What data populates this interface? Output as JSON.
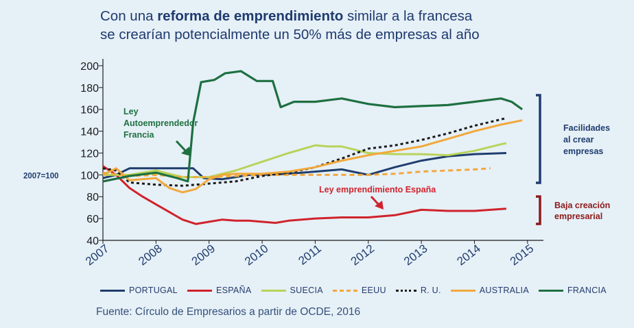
{
  "title": {
    "prefix": "Con una ",
    "bold": "reforma de emprendimiento",
    "suffix": " similar a la francesa",
    "line2": "se crearían potencialmente un 50% más de empresas al año"
  },
  "source": "Fuente: Círculo de Empresarios a partir de OCDE, 2016",
  "base_label": "2007=100",
  "annotations": {
    "francia_law": [
      "Ley",
      "Autoemprendedor",
      "Francia"
    ],
    "espana_law": "Ley emprendimiento España",
    "facilidades": [
      "Facilidades",
      "al crear",
      "empresas"
    ],
    "baja": [
      "Baja creación",
      "empresarial"
    ]
  },
  "colors": {
    "portugal": "#1f3d6e",
    "espana": "#d0222b",
    "suecia": "#b8d35a",
    "eeuu": "#f2a83b",
    "ru": "#1a1a1a",
    "australia": "#f2a83b",
    "francia": "#1e7040",
    "green_annot": "#1e7040",
    "red_annot": "#d0222b",
    "blue_bracket": "#1f3d6e",
    "dark_red_bracket": "#8b1a1a",
    "axis": "#1a1a1a"
  },
  "chart_data": {
    "type": "line",
    "title": "Con una reforma de emprendimiento similar a la francesa se crearían potencialmente un 50% más de empresas al año",
    "xlabel": "",
    "ylabel": "",
    "x_ticks": [
      "2007",
      "2008",
      "2009",
      "2010",
      "2011",
      "2012",
      "2013",
      "2014",
      "2015"
    ],
    "xlim": [
      2007,
      2015.3
    ],
    "y_ticks": [
      40,
      60,
      80,
      100,
      120,
      140,
      160,
      180,
      200
    ],
    "ylim": [
      40,
      205
    ],
    "legend_position": "bottom",
    "series": [
      {
        "name": "PORTUGAL",
        "color_key": "portugal",
        "dash": "solid",
        "points": [
          [
            2007,
            97
          ],
          [
            2007.25,
            100
          ],
          [
            2007.5,
            106
          ],
          [
            2007.75,
            106
          ],
          [
            2008,
            106
          ],
          [
            2008.25,
            106
          ],
          [
            2008.5,
            106
          ],
          [
            2008.7,
            106
          ],
          [
            2008.9,
            97
          ],
          [
            2009.25,
            96
          ],
          [
            2009.5,
            98
          ],
          [
            2009.75,
            100
          ],
          [
            2010,
            100
          ],
          [
            2010.5,
            101
          ],
          [
            2011,
            103
          ],
          [
            2011.5,
            105
          ],
          [
            2012,
            100
          ],
          [
            2012.5,
            107
          ],
          [
            2013,
            113
          ],
          [
            2013.5,
            117
          ],
          [
            2014,
            119
          ],
          [
            2014.6,
            120
          ]
        ]
      },
      {
        "name": "ESPAÑA",
        "color_key": "espana",
        "dash": "solid",
        "points": [
          [
            2007,
            108
          ],
          [
            2007.25,
            100
          ],
          [
            2007.5,
            88
          ],
          [
            2007.75,
            80
          ],
          [
            2008,
            73
          ],
          [
            2008.25,
            66
          ],
          [
            2008.5,
            59
          ],
          [
            2008.75,
            55
          ],
          [
            2009,
            57
          ],
          [
            2009.25,
            59
          ],
          [
            2009.5,
            58
          ],
          [
            2009.75,
            58
          ],
          [
            2010,
            57
          ],
          [
            2010.25,
            56
          ],
          [
            2010.5,
            58
          ],
          [
            2011,
            60
          ],
          [
            2011.5,
            61
          ],
          [
            2012,
            61
          ],
          [
            2012.5,
            63
          ],
          [
            2013,
            68
          ],
          [
            2013.5,
            67
          ],
          [
            2014,
            67
          ],
          [
            2014.6,
            69
          ]
        ]
      },
      {
        "name": "SUECIA",
        "color_key": "suecia",
        "dash": "solid",
        "points": [
          [
            2007,
            100
          ],
          [
            2007.5,
            100
          ],
          [
            2008,
            104
          ],
          [
            2008.5,
            98
          ],
          [
            2009,
            98
          ],
          [
            2009.5,
            104
          ],
          [
            2010,
            112
          ],
          [
            2010.5,
            120
          ],
          [
            2011,
            127
          ],
          [
            2011.25,
            126
          ],
          [
            2011.5,
            126
          ],
          [
            2012,
            120
          ],
          [
            2012.5,
            119
          ],
          [
            2013,
            119
          ],
          [
            2013.5,
            118
          ],
          [
            2014,
            122
          ],
          [
            2014.5,
            128
          ],
          [
            2014.6,
            129
          ]
        ]
      },
      {
        "name": "EEUU",
        "color_key": "eeuu",
        "dash": "dashed",
        "points": [
          [
            2007,
            102
          ],
          [
            2007.5,
            99
          ],
          [
            2008,
            100
          ],
          [
            2008.5,
            98
          ],
          [
            2009,
            98
          ],
          [
            2009.5,
            99
          ],
          [
            2010,
            100
          ],
          [
            2010.5,
            100
          ],
          [
            2011,
            100
          ],
          [
            2011.5,
            100
          ],
          [
            2012,
            100
          ],
          [
            2012.5,
            101
          ],
          [
            2013,
            103
          ],
          [
            2013.5,
            104
          ],
          [
            2014,
            105
          ],
          [
            2014.3,
            106
          ]
        ]
      },
      {
        "name": "R. U.",
        "color_key": "ru",
        "dash": "dotted",
        "points": [
          [
            2007,
            106
          ],
          [
            2007.25,
            104
          ],
          [
            2007.5,
            93
          ],
          [
            2008,
            91
          ],
          [
            2008.5,
            90
          ],
          [
            2009,
            92
          ],
          [
            2009.5,
            94
          ],
          [
            2010,
            99
          ],
          [
            2010.5,
            102
          ],
          [
            2011,
            107
          ],
          [
            2011.5,
            115
          ],
          [
            2012,
            124
          ],
          [
            2012.5,
            127
          ],
          [
            2013,
            132
          ],
          [
            2013.5,
            138
          ],
          [
            2014,
            145
          ],
          [
            2014.6,
            152
          ]
        ]
      },
      {
        "name": "AUSTRALIA",
        "color_key": "australia",
        "dash": "solid",
        "points": [
          [
            2007,
            100
          ],
          [
            2007.25,
            106
          ],
          [
            2007.5,
            95
          ],
          [
            2008,
            97
          ],
          [
            2008.25,
            88
          ],
          [
            2008.5,
            84
          ],
          [
            2008.75,
            87
          ],
          [
            2009,
            96
          ],
          [
            2009.25,
            100
          ],
          [
            2009.5,
            101
          ],
          [
            2010,
            101
          ],
          [
            2010.5,
            103
          ],
          [
            2011,
            107
          ],
          [
            2011.5,
            113
          ],
          [
            2012,
            118
          ],
          [
            2012.5,
            122
          ],
          [
            2013,
            126
          ],
          [
            2013.5,
            133
          ],
          [
            2014,
            140
          ],
          [
            2014.5,
            146
          ],
          [
            2014.9,
            150
          ]
        ]
      },
      {
        "name": "FRANCIA",
        "color_key": "francia",
        "dash": "solid",
        "points": [
          [
            2007,
            94
          ],
          [
            2007.5,
            99
          ],
          [
            2008,
            102
          ],
          [
            2008.4,
            97
          ],
          [
            2008.6,
            94
          ],
          [
            2008.7,
            148
          ],
          [
            2008.85,
            185
          ],
          [
            2009.1,
            187
          ],
          [
            2009.3,
            193
          ],
          [
            2009.6,
            195
          ],
          [
            2009.9,
            186
          ],
          [
            2010.2,
            186
          ],
          [
            2010.35,
            162
          ],
          [
            2010.6,
            167
          ],
          [
            2011,
            167
          ],
          [
            2011.5,
            170
          ],
          [
            2012,
            165
          ],
          [
            2012.5,
            162
          ],
          [
            2013,
            163
          ],
          [
            2013.5,
            164
          ],
          [
            2014,
            167
          ],
          [
            2014.5,
            170
          ],
          [
            2014.7,
            167
          ],
          [
            2014.9,
            160
          ]
        ]
      }
    ]
  }
}
